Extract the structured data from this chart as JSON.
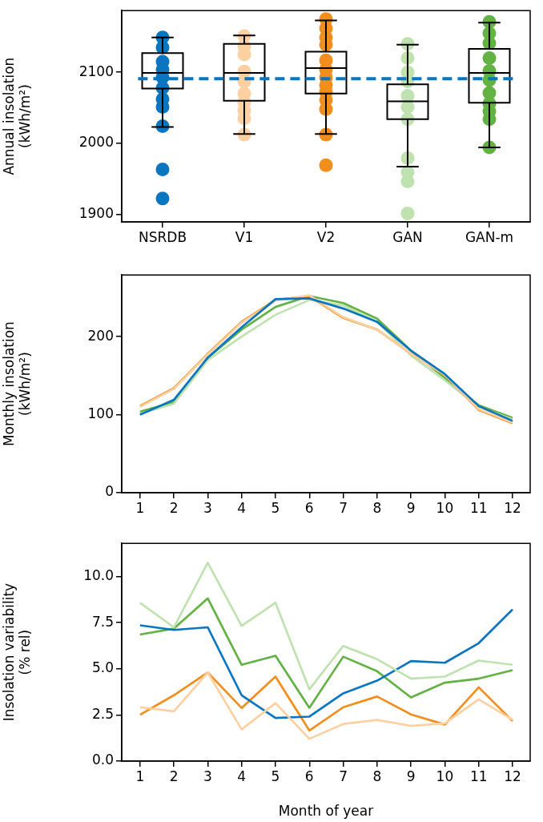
{
  "chart_data": [
    {
      "type": "box",
      "ylabel": "Annual insolation\n(kWh/m²)",
      "categories": [
        "NSRDB",
        "V1",
        "V2",
        "GAN",
        "GAN-m"
      ],
      "ylim": [
        1889,
        2187
      ],
      "yticks": [
        1900,
        2000,
        2100
      ],
      "marker": "circle",
      "series": [
        {
          "type": "scatter",
          "color": "#0a75c0",
          "x": [
            "NSRDB",
            "NSRDB",
            "NSRDB",
            "NSRDB",
            "NSRDB",
            "NSRDB",
            "NSRDB",
            "NSRDB",
            "NSRDB",
            "NSRDB",
            "NSRDB"
          ],
          "values": [
            2149,
            2135,
            2115,
            2104,
            2093,
            2078,
            2062,
            2051,
            2024,
            1963,
            1922
          ]
        },
        {
          "type": "scatter",
          "color": "#fdd0a2",
          "x": [
            "V1",
            "V1",
            "V1",
            "V1",
            "V1",
            "V1",
            "V1",
            "V1",
            "V1",
            "V1"
          ],
          "values": [
            2151,
            2137,
            2125,
            2101,
            2087,
            2070,
            2058,
            2046,
            2035,
            2012
          ]
        },
        {
          "type": "scatter",
          "color": "#f28e1c",
          "x": [
            "V2",
            "V2",
            "V2",
            "V2",
            "V2",
            "V2",
            "V2",
            "V2",
            "V2",
            "V2",
            "V2",
            "V2",
            "V2"
          ],
          "values": [
            2175,
            2162,
            2149,
            2139,
            2117,
            2104,
            2093,
            2082,
            2072,
            2061,
            2048,
            2012,
            1969
          ]
        },
        {
          "type": "scatter",
          "color": "#c0e2b0",
          "x": [
            "GAN",
            "GAN",
            "GAN",
            "GAN",
            "GAN",
            "GAN",
            "GAN",
            "GAN",
            "GAN",
            "GAN",
            "GAN"
          ],
          "values": [
            2140,
            2120,
            2100,
            2087,
            2067,
            2051,
            2034,
            1979,
            1959,
            1946,
            1901
          ]
        },
        {
          "type": "scatter",
          "color": "#63b244",
          "x": [
            "GAN-m",
            "GAN-m",
            "GAN-m",
            "GAN-m",
            "GAN-m",
            "GAN-m",
            "GAN-m",
            "GAN-m",
            "GAN-m",
            "GAN-m",
            "GAN-m"
          ],
          "values": [
            2171,
            2155,
            2141,
            2120,
            2102,
            2089,
            2071,
            2056,
            2045,
            2034,
            1994
          ]
        }
      ],
      "boxes": [
        {
          "low": 2023,
          "q1": 2077,
          "median": 2099,
          "q3": 2127,
          "high": 2149
        },
        {
          "low": 2013,
          "q1": 2060,
          "median": 2099,
          "q3": 2140,
          "high": 2152
        },
        {
          "low": 2013,
          "q1": 2070,
          "median": 2106,
          "q3": 2129,
          "high": 2173
        },
        {
          "low": 1967,
          "q1": 2034,
          "median": 2059,
          "q3": 2083,
          "high": 2139
        },
        {
          "low": 1994,
          "q1": 2057,
          "median": 2099,
          "q3": 2133,
          "high": 2170
        }
      ],
      "ref_lines": [
        {
          "axis": "y",
          "value": 2091,
          "color": "#0a75c0",
          "line_style": "dashed"
        }
      ]
    },
    {
      "type": "line",
      "ylabel": "Monthly insolation\n(kWh/m²)",
      "x": [
        1,
        2,
        3,
        4,
        5,
        6,
        7,
        8,
        9,
        10,
        11,
        12
      ],
      "xlim": [
        0.46,
        12.52
      ],
      "xticks": [
        1,
        2,
        3,
        4,
        5,
        6,
        7,
        8,
        9,
        10,
        11,
        12
      ],
      "ylim": [
        0,
        279
      ],
      "yticks": [
        0,
        100,
        200
      ],
      "series": [
        {
          "color": "#0a75c0",
          "values": [
            100,
            119,
            173,
            212,
            248,
            249,
            236,
            219,
            182,
            152,
            111,
            92
          ]
        },
        {
          "color": "#fdd0a2",
          "values": [
            110,
            133,
            177,
            218,
            246,
            253,
            225,
            209,
            178,
            151,
            107,
            90
          ]
        },
        {
          "color": "#f28e1c",
          "values": [
            111,
            134,
            178,
            219,
            247,
            252,
            224,
            209,
            178,
            151,
            106,
            89
          ]
        },
        {
          "color": "#c0e2b0",
          "values": [
            101,
            114,
            170,
            200,
            228,
            247,
            240,
            219,
            176,
            144,
            110,
            94
          ]
        },
        {
          "color": "#63b244",
          "values": [
            104,
            116,
            173,
            209,
            238,
            252,
            243,
            223,
            182,
            147,
            112,
            96
          ]
        }
      ]
    },
    {
      "type": "line",
      "xlabel": "Month of year",
      "ylabel": "Insolation variability\n(% rel)",
      "x": [
        1,
        2,
        3,
        4,
        5,
        6,
        7,
        8,
        9,
        10,
        11,
        12
      ],
      "xlim": [
        0.46,
        12.52
      ],
      "xticks": [
        1,
        2,
        3,
        4,
        5,
        6,
        7,
        8,
        9,
        10,
        11,
        12
      ],
      "ylim": [
        0,
        11.8
      ],
      "yticks": [
        {
          "value": 0,
          "label": "0.0"
        },
        {
          "value": 2.5,
          "label": "2.5"
        },
        {
          "value": 5,
          "label": "5.0"
        },
        {
          "value": 7.5,
          "label": "7.5"
        },
        {
          "value": 10,
          "label": "10.0"
        }
      ],
      "series": [
        {
          "color": "#fdd0a2",
          "values": [
            2.92,
            2.7,
            4.8,
            1.72,
            3.14,
            1.21,
            2.01,
            2.23,
            1.91,
            2.05,
            3.35,
            2.24
          ]
        },
        {
          "color": "#c0e2b0",
          "values": [
            8.58,
            7.25,
            10.75,
            7.33,
            8.58,
            3.89,
            6.24,
            5.52,
            4.47,
            4.58,
            5.45,
            5.22
          ]
        },
        {
          "color": "#0a75c0",
          "values": [
            7.36,
            7.11,
            7.25,
            3.57,
            2.34,
            2.41,
            3.67,
            4.36,
            5.42,
            5.33,
            6.39,
            8.22
          ]
        },
        {
          "color": "#63b244",
          "values": [
            6.86,
            7.18,
            8.82,
            5.22,
            5.71,
            2.89,
            5.66,
            4.87,
            3.45,
            4.25,
            4.47,
            4.93
          ]
        },
        {
          "color": "#f28e1c",
          "values": [
            2.51,
            3.57,
            4.8,
            2.88,
            4.58,
            1.66,
            2.92,
            3.5,
            2.53,
            1.98,
            4.0,
            2.17
          ]
        }
      ]
    }
  ]
}
